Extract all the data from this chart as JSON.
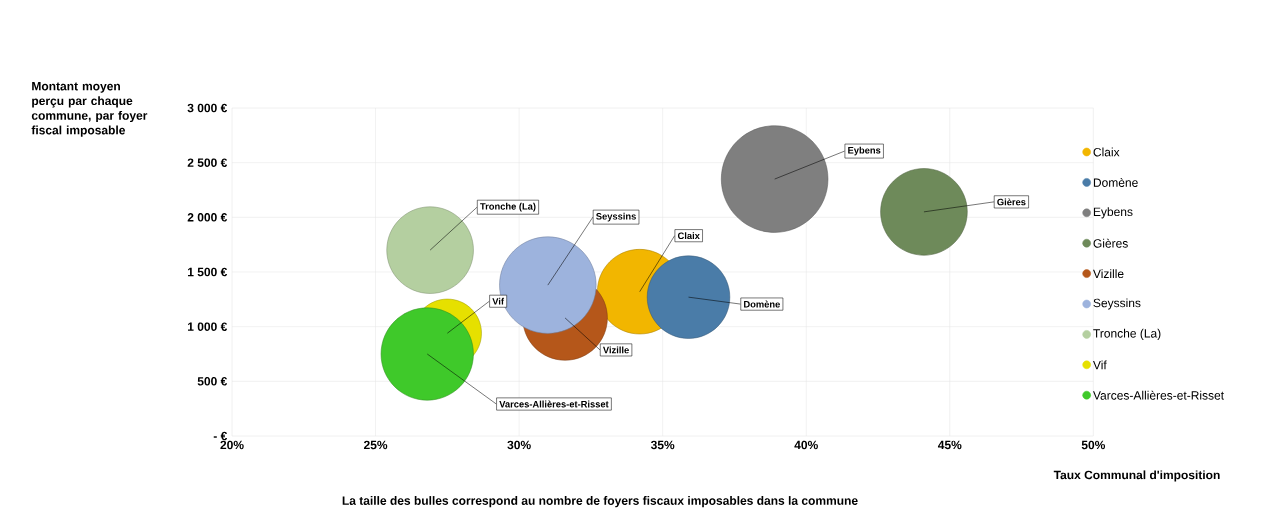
{
  "chart_data": {
    "type": "bubble",
    "xlabel": "Taux Communal d'imposition",
    "ylabel": "Montant moyen perçu par chaque commune, par foyer fiscal imposable",
    "annotations": [
      "La taille des bulles correspond au nombre de foyers fiscaux imposables dans la commune"
    ],
    "xlim": [
      20,
      50
    ],
    "xticks": [
      {
        "value": 20,
        "label": "20%"
      },
      {
        "value": 25,
        "label": "25%"
      },
      {
        "value": 30,
        "label": "30%"
      },
      {
        "value": 35,
        "label": "35%"
      },
      {
        "value": 40,
        "label": "40%"
      },
      {
        "value": 45,
        "label": "45%"
      },
      {
        "value": 50,
        "label": "50%"
      }
    ],
    "ylim": [
      0,
      3000
    ],
    "yticks": [
      {
        "value": 0,
        "label": "-   €"
      },
      {
        "value": 500,
        "label": "500 €"
      },
      {
        "value": 1000,
        "label": "1 000 €"
      },
      {
        "value": 1500,
        "label": "1 500 €"
      },
      {
        "value": 2000,
        "label": "2 000 €"
      },
      {
        "value": 2500,
        "label": "2 500 €"
      },
      {
        "value": 3000,
        "label": "3 000 €"
      }
    ],
    "grid": true,
    "legend": "right",
    "marker": "circle",
    "series": [
      {
        "name": "Claix",
        "color": "#f2b600",
        "x": [
          34.2
        ],
        "values": [
          1320
        ],
        "sizes": [
          0.63
        ]
      },
      {
        "name": "Domène",
        "color": "#4a7ca8",
        "x": [
          35.9
        ],
        "values": [
          1270
        ],
        "sizes": [
          0.6
        ]
      },
      {
        "name": "Eybens",
        "color": "#7f7f7f",
        "x": [
          38.9
        ],
        "values": [
          2350
        ],
        "sizes": [
          1
        ]
      },
      {
        "name": "Gières",
        "color": "#6e8a5a",
        "x": [
          44.1
        ],
        "values": [
          2050
        ],
        "sizes": [
          0.66
        ]
      },
      {
        "name": "Vizille",
        "color": "#b5571a",
        "x": [
          31.6
        ],
        "values": [
          1080
        ],
        "sizes": [
          0.63
        ]
      },
      {
        "name": "Seyssins",
        "color": "#9db3dd",
        "x": [
          31.0
        ],
        "values": [
          1380
        ],
        "sizes": [
          0.82
        ]
      },
      {
        "name": "Tronche (La)",
        "color": "#b4cfa0",
        "x": [
          26.9
        ],
        "values": [
          1700
        ],
        "sizes": [
          0.66
        ]
      },
      {
        "name": "Vif",
        "color": "#e6e000",
        "x": [
          27.5
        ],
        "values": [
          940
        ],
        "sizes": [
          0.41
        ]
      },
      {
        "name": "Varces-Allières-et-Risset",
        "color": "#3fc92a",
        "x": [
          26.8
        ],
        "values": [
          750
        ],
        "sizes": [
          0.75
        ]
      }
    ]
  }
}
